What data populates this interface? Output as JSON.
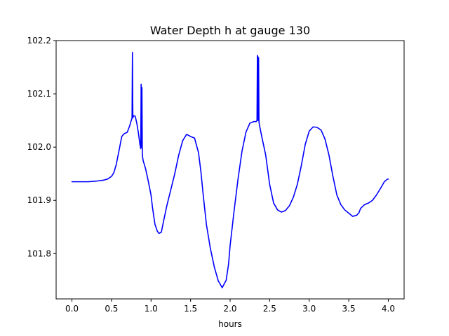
{
  "chart_data": {
    "type": "line",
    "title": "Water Depth h at gauge 130",
    "xlabel": "hours",
    "ylabel": "",
    "xlim": [
      -0.2,
      4.2
    ],
    "ylim": [
      101.715,
      102.2
    ],
    "x_ticks": [
      0.0,
      0.5,
      1.0,
      1.5,
      2.0,
      2.5,
      3.0,
      3.5,
      4.0
    ],
    "x_tick_labels": [
      "0.0",
      "0.5",
      "1.0",
      "1.5",
      "2.0",
      "2.5",
      "3.0",
      "3.5",
      "4.0"
    ],
    "y_ticks": [
      101.8,
      101.9,
      102.0,
      102.1,
      102.2
    ],
    "y_tick_labels": [
      "101.8",
      "101.9",
      "102.0",
      "102.1",
      "102.2"
    ],
    "grid": false,
    "series": [
      {
        "color": "#0000ff",
        "x": [
          0.0,
          0.1,
          0.2,
          0.3,
          0.4,
          0.45,
          0.5,
          0.53,
          0.56,
          0.6,
          0.63,
          0.66,
          0.7,
          0.73,
          0.76,
          0.765,
          0.77,
          0.775,
          0.78,
          0.8,
          0.82,
          0.84,
          0.86,
          0.87,
          0.875,
          0.88,
          0.885,
          0.89,
          0.895,
          0.9,
          0.93,
          0.96,
          1.0,
          1.02,
          1.05,
          1.08,
          1.1,
          1.13,
          1.16,
          1.2,
          1.25,
          1.3,
          1.35,
          1.4,
          1.45,
          1.5,
          1.55,
          1.6,
          1.63,
          1.66,
          1.7,
          1.75,
          1.8,
          1.85,
          1.9,
          1.95,
          1.98,
          2.0,
          2.05,
          2.1,
          2.15,
          2.2,
          2.25,
          2.3,
          2.33,
          2.34,
          2.345,
          2.35,
          2.355,
          2.36,
          2.365,
          2.37,
          2.4,
          2.45,
          2.5,
          2.55,
          2.6,
          2.65,
          2.7,
          2.75,
          2.8,
          2.85,
          2.9,
          2.95,
          3.0,
          3.05,
          3.1,
          3.15,
          3.2,
          3.25,
          3.3,
          3.35,
          3.4,
          3.45,
          3.5,
          3.55,
          3.6,
          3.63,
          3.65,
          3.7,
          3.75,
          3.8,
          3.85,
          3.9,
          3.95,
          3.99,
          4.0
        ],
        "y": [
          101.935,
          101.935,
          101.935,
          101.936,
          101.938,
          101.94,
          101.945,
          101.952,
          101.967,
          101.997,
          102.02,
          102.025,
          102.028,
          102.04,
          102.055,
          102.178,
          102.055,
          102.057,
          102.059,
          102.058,
          102.045,
          102.027,
          102.005,
          101.997,
          102.118,
          102.0,
          102.112,
          101.985,
          101.98,
          101.975,
          101.96,
          101.94,
          101.91,
          101.885,
          101.855,
          101.842,
          101.838,
          101.84,
          101.862,
          101.89,
          101.92,
          101.95,
          101.985,
          102.012,
          102.024,
          102.02,
          102.017,
          101.99,
          101.955,
          101.91,
          101.855,
          101.81,
          101.775,
          101.749,
          101.736,
          101.75,
          101.78,
          101.815,
          101.88,
          101.94,
          101.992,
          102.028,
          102.045,
          102.048,
          102.048,
          102.05,
          102.172,
          102.17,
          102.05,
          102.168,
          102.048,
          102.042,
          102.02,
          101.985,
          101.93,
          101.895,
          101.882,
          101.878,
          101.881,
          101.89,
          101.906,
          101.93,
          101.965,
          102.005,
          102.03,
          102.038,
          102.037,
          102.032,
          102.015,
          101.985,
          101.945,
          101.91,
          101.892,
          101.882,
          101.876,
          101.87,
          101.872,
          101.877,
          101.885,
          101.892,
          101.895,
          101.9,
          101.91,
          101.922,
          101.935,
          101.94,
          101.94
        ]
      }
    ]
  }
}
